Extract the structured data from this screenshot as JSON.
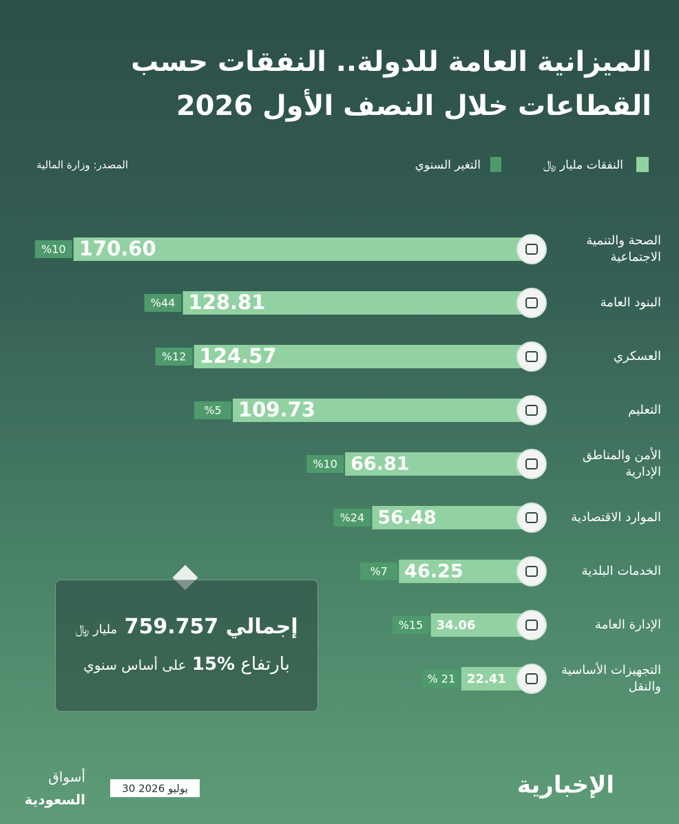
{
  "chart_data": {
    "type": "bar",
    "orientation": "horizontal",
    "title": "الميزانية العامة للدولة.. النفقات حسب القطاعات خلال النصف الأول 2026",
    "source": "المصدر: وزارة المالية",
    "categories": [
      "الصحة والتنمية الاجتماعية",
      "البنود العامة",
      "العسكري",
      "التعليم",
      "الأمن والمناطق الإدارية",
      "الموارد الاقتصادية",
      "الخدمات البلدية",
      "الإدارة العامة",
      "التجهيزات الأساسية والنقل"
    ],
    "series": [
      {
        "name": "النفقات مليار ﷼",
        "color": "#92d2a2",
        "values": [
          170.6,
          128.81,
          124.57,
          109.73,
          66.81,
          56.48,
          46.25,
          34.06,
          22.41
        ],
        "value_labels": [
          "170.60",
          "128.81",
          "124.57",
          "109.73",
          "66.81",
          "56.48",
          "46.25",
          "34.06",
          "22.41"
        ]
      },
      {
        "name": "التغير السنوي",
        "color": "#4e9a6c",
        "values": [
          10,
          44,
          12,
          5,
          10,
          24,
          7,
          15,
          21
        ],
        "value_labels": [
          "%10",
          "%44",
          "%12",
          "%5",
          "%10",
          "%24",
          "%7",
          "%15",
          "% 21"
        ]
      }
    ]
  },
  "total": {
    "label": "إجمالي",
    "value": 759.757,
    "unit": "مليار ﷼",
    "rise_label": "بارتفاع",
    "rise": "15%",
    "rise_suffix": "على أساس سنوي"
  },
  "footer": {
    "date": "30 يوليو 2026",
    "brand_line1": "أسواق",
    "brand_line2": "السعودية",
    "channel": "الإخبارية"
  }
}
